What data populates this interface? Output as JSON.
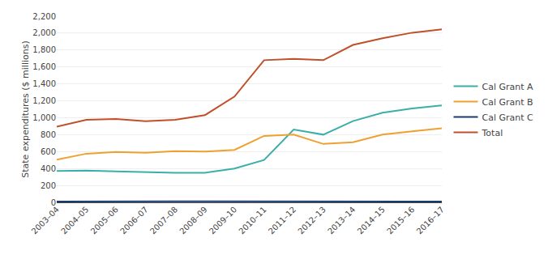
{
  "chart_data": {
    "type": "line",
    "categories": [
      "2003–04",
      "2004–05",
      "2005–06",
      "2006–07",
      "2007–08",
      "2008–09",
      "2009–10",
      "2010–11",
      "2011–12",
      "2012–13",
      "2013–14",
      "2014–15",
      "2015–16",
      "2016–17"
    ],
    "series": [
      {
        "name": "Cal Grant A",
        "color": "#3aafa9",
        "values": [
          370,
          375,
          365,
          355,
          350,
          350,
          400,
          500,
          860,
          800,
          960,
          1060,
          1110,
          1145
        ]
      },
      {
        "name": "Cal Grant B",
        "color": "#f0a030",
        "values": [
          505,
          575,
          595,
          585,
          605,
          600,
          620,
          785,
          800,
          690,
          710,
          800,
          840,
          875
        ]
      },
      {
        "name": "Cal Grant C",
        "color": "#1a3a6e",
        "values": [
          10,
          12,
          12,
          12,
          12,
          12,
          12,
          12,
          12,
          10,
          10,
          10,
          10,
          10
        ]
      },
      {
        "name": "Total",
        "color": "#c0502a",
        "values": [
          895,
          975,
          985,
          960,
          975,
          1030,
          1250,
          1680,
          1695,
          1680,
          1860,
          1940,
          2005,
          2045
        ]
      }
    ],
    "y_label": "State expenditures ($ millions)",
    "ylim": [
      0,
      2200
    ],
    "yticks": [
      0,
      200,
      400,
      600,
      800,
      {
        "value": 1000,
        "label": "1,000"
      },
      {
        "value": 1200,
        "label": "1,200"
      },
      {
        "value": 1400,
        "label": "1,400"
      },
      {
        "value": 1600,
        "label": "1,600"
      },
      {
        "value": 1800,
        "label": "1,800"
      },
      {
        "value": 2000,
        "label": "2,000"
      },
      {
        "value": 2200,
        "label": "2,200"
      }
    ],
    "grid": true,
    "legend": "right"
  }
}
